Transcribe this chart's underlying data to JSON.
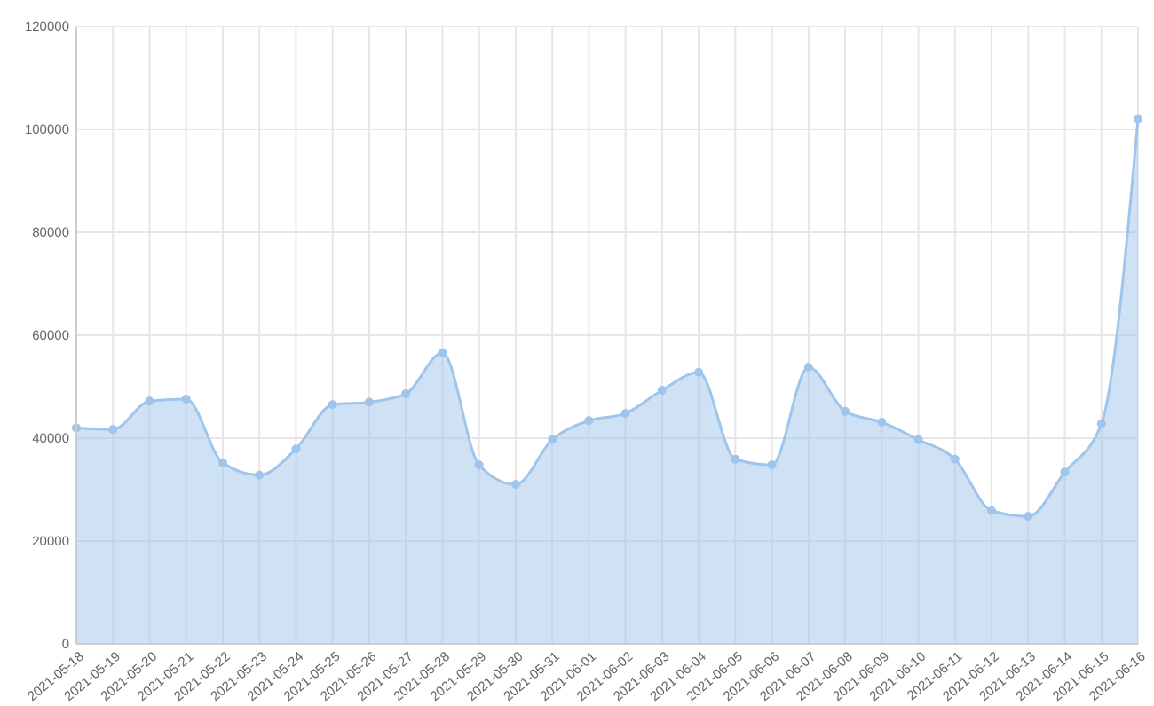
{
  "chart_data": {
    "type": "area",
    "categories": [
      "2021-05-18",
      "2021-05-19",
      "2021-05-20",
      "2021-05-21",
      "2021-05-22",
      "2021-05-23",
      "2021-05-24",
      "2021-05-25",
      "2021-05-26",
      "2021-05-27",
      "2021-05-28",
      "2021-05-29",
      "2021-05-30",
      "2021-05-31",
      "2021-06-01",
      "2021-06-02",
      "2021-06-03",
      "2021-06-04",
      "2021-06-05",
      "2021-06-06",
      "2021-06-07",
      "2021-06-08",
      "2021-06-09",
      "2021-06-10",
      "2021-06-11",
      "2021-06-12",
      "2021-06-13",
      "2021-06-14",
      "2021-06-15",
      "2021-06-16"
    ],
    "series": [
      {
        "color": "#9fc5ec",
        "values": [
          42000,
          41700,
          47200,
          47600,
          35200,
          32800,
          37900,
          46500,
          47000,
          48600,
          56600,
          34800,
          31000,
          39700,
          43400,
          44800,
          49300,
          52800,
          35900,
          34800,
          53800,
          45200,
          43100,
          39700,
          35900,
          25900,
          24800,
          33400,
          42800,
          102000
        ]
      }
    ],
    "ylim": [
      0,
      120000
    ],
    "yticks": [
      0,
      20000,
      40000,
      60000,
      80000,
      100000,
      120000
    ],
    "grid": true,
    "marker": "circle"
  }
}
